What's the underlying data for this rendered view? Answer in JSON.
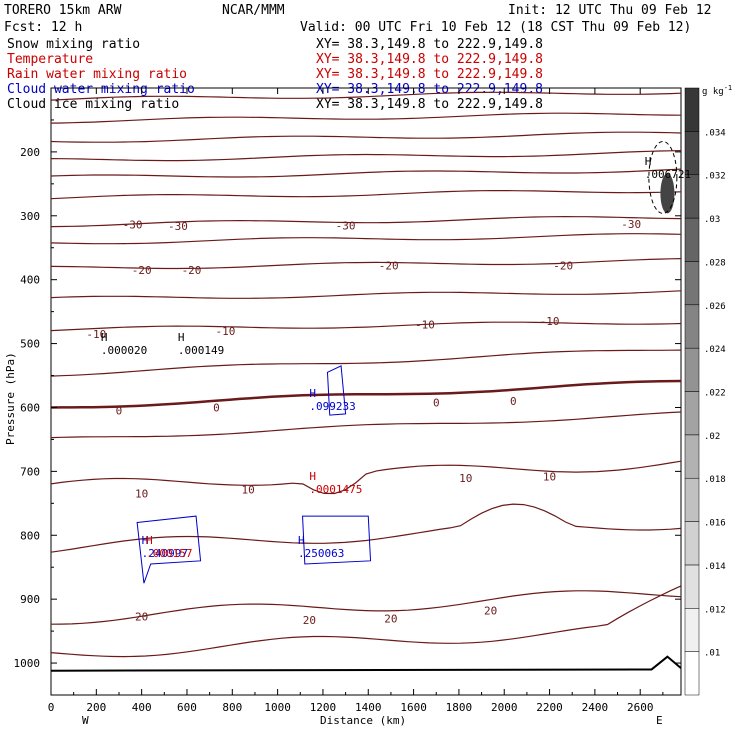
{
  "header": {
    "model": "TORERO  15km ARW",
    "center": "NCAR/MMM",
    "init": "Init: 12 UTC Thu 09 Feb 12",
    "fcst": "Fcst:   12 h",
    "valid": "Valid: 00 UTC Fri 10 Feb 12 (18 CST Thu 09 Feb 12)"
  },
  "legend": [
    {
      "name": "Snow mixing ratio",
      "xy": "XY=  38.3,149.8 to 222.9,149.8",
      "color": "#000000"
    },
    {
      "name": "Temperature",
      "xy": "XY=  38.3,149.8 to 222.9,149.8",
      "color": "#cc0000"
    },
    {
      "name": "Rain water mixing ratio",
      "xy": "XY=  38.3,149.8 to 222.9,149.8",
      "color": "#cc0000"
    },
    {
      "name": "Cloud water mixing ratio",
      "xy": "XY=  38.3,149.8 to 222.9,149.8",
      "color": "#0000cc"
    },
    {
      "name": "Cloud ice mixing ratio",
      "xy": "XY=  38.3,149.8 to 222.9,149.8",
      "color": "#000000"
    }
  ],
  "chart_data": {
    "type": "contour",
    "xlabel": "Distance (km)",
    "ylabel": "Pressure (hPa)",
    "x_ticks": [
      0,
      200,
      400,
      600,
      800,
      1000,
      1200,
      1400,
      1600,
      1800,
      2000,
      2200,
      2400,
      2600
    ],
    "y_ticks": [
      200,
      300,
      400,
      500,
      600,
      700,
      800,
      900,
      1000
    ],
    "xlim": [
      0,
      2780
    ],
    "ylim": [
      1050,
      100
    ],
    "x_end_labels": {
      "left": "W",
      "right": "E"
    },
    "colorbar": {
      "unit": "g kg",
      "unit_exp": "-1",
      "ticks": [
        ".01",
        ".012",
        ".014",
        ".016",
        ".018",
        ".02",
        ".022",
        ".024",
        ".026",
        ".028",
        ".03",
        ".032",
        ".034"
      ]
    },
    "temperature_labels": [
      {
        "text": "-30",
        "x": 360,
        "p": 314
      },
      {
        "text": "-30",
        "x": 560,
        "p": 316
      },
      {
        "text": "-30",
        "x": 1300,
        "p": 315
      },
      {
        "text": "-30",
        "x": 2560,
        "p": 313
      },
      {
        "text": "-20",
        "x": 400,
        "p": 385
      },
      {
        "text": "-20",
        "x": 620,
        "p": 385
      },
      {
        "text": "-20",
        "x": 1490,
        "p": 378
      },
      {
        "text": "-20",
        "x": 2260,
        "p": 378
      },
      {
        "text": "-10",
        "x": 200,
        "p": 485
      },
      {
        "text": "-10",
        "x": 770,
        "p": 480
      },
      {
        "text": "-10",
        "x": 1650,
        "p": 470
      },
      {
        "text": "-10",
        "x": 2200,
        "p": 465
      },
      {
        "text": "0",
        "x": 300,
        "p": 605
      },
      {
        "text": "0",
        "x": 730,
        "p": 600
      },
      {
        "text": "0",
        "x": 1700,
        "p": 592
      },
      {
        "text": "0",
        "x": 2040,
        "p": 590
      },
      {
        "text": "10",
        "x": 400,
        "p": 735
      },
      {
        "text": "10",
        "x": 870,
        "p": 728
      },
      {
        "text": "10",
        "x": 1830,
        "p": 710
      },
      {
        "text": "10",
        "x": 2200,
        "p": 708
      },
      {
        "text": "20",
        "x": 400,
        "p": 927
      },
      {
        "text": "20",
        "x": 1140,
        "p": 933
      },
      {
        "text": "20",
        "x": 1500,
        "p": 930
      },
      {
        "text": "20",
        "x": 1940,
        "p": 918
      }
    ],
    "max_labels": [
      {
        "h": "H",
        "value": ".000020",
        "x": 220,
        "p": 502,
        "color": "#000000"
      },
      {
        "h": "H",
        "value": ".000149",
        "x": 560,
        "p": 502,
        "color": "#000000"
      },
      {
        "h": "H",
        "value": ".006721",
        "x": 2620,
        "p": 227,
        "color": "#000000"
      },
      {
        "h": "H",
        "value": ".099233",
        "x": 1140,
        "p": 590,
        "color": "#0000cc"
      },
      {
        "h": "H",
        "value": ".0001475",
        "x": 1140,
        "p": 720,
        "color": "#cc0000"
      },
      {
        "h": "H",
        "value": ".240997",
        "x": 400,
        "p": 820,
        "color": "#0000cc"
      },
      {
        "h": "H",
        "value": ".000157",
        "x": 420,
        "p": 820,
        "color": "#cc0000"
      },
      {
        "h": "H",
        "value": ".250063",
        "x": 1090,
        "p": 820,
        "color": "#0000cc"
      }
    ]
  }
}
